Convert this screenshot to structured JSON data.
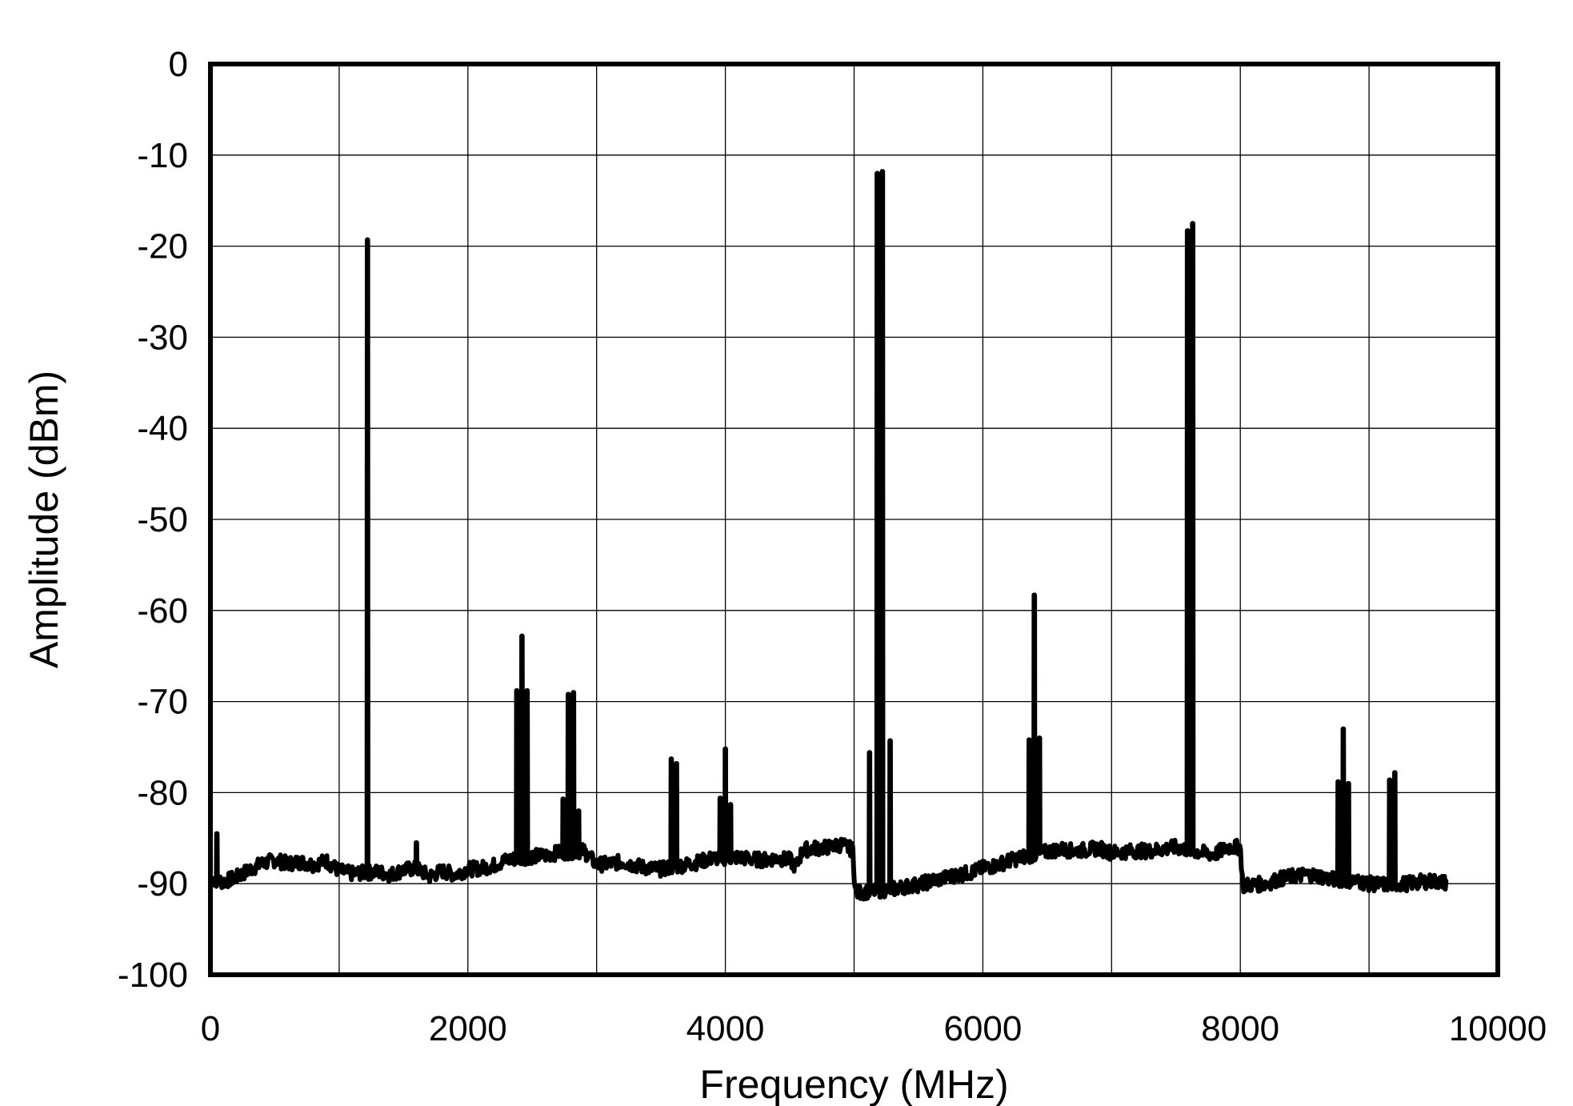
{
  "chart_data": {
    "type": "line",
    "title": "",
    "xlabel": "Frequency (MHz)",
    "ylabel": "Amplitude (dBm)",
    "xlim": [
      0,
      10000
    ],
    "ylim": [
      -100,
      0
    ],
    "xticks": [
      0,
      2000,
      4000,
      6000,
      8000,
      10000
    ],
    "yticks": [
      0,
      -10,
      -20,
      -30,
      -40,
      -50,
      -60,
      -70,
      -80,
      -90,
      -100
    ],
    "x_tick_labels": [
      "0",
      "2000",
      "4000",
      "6000",
      "8000",
      "10000"
    ],
    "y_tick_labels": [
      "0",
      "-10",
      "-20",
      "-30",
      "-40",
      "-50",
      "-60",
      "-70",
      "-80",
      "-90",
      "-100"
    ],
    "grid": true,
    "x_grid_step": 1000,
    "line_color": "#000000",
    "series": [
      {
        "noise_floor": [
          [
            10,
            -89.5
          ],
          [
            100,
            -89.8
          ],
          [
            200,
            -89.3
          ],
          [
            300,
            -88.5
          ],
          [
            400,
            -87.8
          ],
          [
            500,
            -87.4
          ],
          [
            600,
            -87.8
          ],
          [
            700,
            -87.6
          ],
          [
            800,
            -87.9
          ],
          [
            900,
            -87.5
          ],
          [
            1000,
            -88.6
          ],
          [
            1100,
            -88.9
          ],
          [
            1300,
            -88.7
          ],
          [
            1400,
            -89.0
          ],
          [
            1500,
            -88.5
          ],
          [
            1600,
            -88.3
          ],
          [
            1700,
            -89.2
          ],
          [
            1800,
            -88.6
          ],
          [
            1900,
            -89.0
          ],
          [
            2000,
            -88.4
          ],
          [
            2100,
            -88.3
          ],
          [
            2200,
            -88.0
          ],
          [
            2300,
            -87.4
          ],
          [
            2500,
            -87.0
          ],
          [
            2600,
            -86.9
          ],
          [
            2700,
            -86.6
          ],
          [
            2900,
            -86.4
          ],
          [
            3000,
            -87.9
          ],
          [
            3100,
            -87.8
          ],
          [
            3200,
            -87.6
          ],
          [
            3300,
            -88.0
          ],
          [
            3400,
            -88.3
          ],
          [
            3500,
            -88.4
          ],
          [
            3700,
            -87.9
          ],
          [
            3800,
            -87.6
          ],
          [
            3900,
            -87.2
          ],
          [
            4100,
            -87.1
          ],
          [
            4200,
            -87.3
          ],
          [
            4300,
            -87.4
          ],
          [
            4400,
            -87.2
          ],
          [
            4500,
            -87.4
          ],
          [
            4550,
            -88.2
          ],
          [
            4600,
            -86.3
          ],
          [
            4700,
            -86.1
          ],
          [
            4800,
            -86.0
          ],
          [
            4900,
            -85.7
          ],
          [
            4990,
            -86.3
          ],
          [
            5010,
            -91.0
          ],
          [
            5300,
            -90.6
          ],
          [
            5400,
            -90.3
          ],
          [
            5500,
            -90.1
          ],
          [
            5600,
            -89.7
          ],
          [
            5700,
            -89.4
          ],
          [
            5800,
            -89.0
          ],
          [
            5900,
            -88.8
          ],
          [
            6000,
            -88.3
          ],
          [
            6100,
            -88.0
          ],
          [
            6200,
            -87.5
          ],
          [
            6300,
            -87.1
          ],
          [
            6500,
            -86.5
          ],
          [
            6600,
            -86.2
          ],
          [
            6700,
            -86.4
          ],
          [
            6800,
            -86.3
          ],
          [
            6900,
            -86.1
          ],
          [
            7000,
            -86.6
          ],
          [
            7100,
            -86.5
          ],
          [
            7200,
            -86.4
          ],
          [
            7300,
            -86.4
          ],
          [
            7400,
            -86.2
          ],
          [
            7500,
            -86.0
          ],
          [
            7700,
            -86.6
          ],
          [
            7800,
            -86.8
          ],
          [
            7900,
            -86.0
          ],
          [
            8000,
            -86.0
          ],
          [
            8020,
            -90.2
          ],
          [
            8200,
            -90.0
          ],
          [
            8300,
            -89.5
          ],
          [
            8400,
            -89.2
          ],
          [
            8500,
            -89.0
          ],
          [
            8600,
            -89.1
          ],
          [
            8700,
            -89.5
          ],
          [
            8900,
            -89.7
          ],
          [
            9000,
            -90.0
          ],
          [
            9100,
            -90.1
          ],
          [
            9300,
            -90.0
          ],
          [
            9400,
            -89.8
          ],
          [
            9500,
            -89.7
          ],
          [
            9600,
            -89.9
          ]
        ],
        "spurs": [
          {
            "x": 50,
            "y": -84.5
          },
          {
            "x": 1220,
            "y": -19.3
          },
          {
            "x": 1600,
            "y": -85.5
          },
          {
            "x": 2380,
            "y": -68.8
          },
          {
            "x": 2420,
            "y": -62.8
          },
          {
            "x": 2460,
            "y": -68.8
          },
          {
            "x": 2740,
            "y": -80.7
          },
          {
            "x": 2780,
            "y": -69.2
          },
          {
            "x": 2820,
            "y": -69.0
          },
          {
            "x": 2860,
            "y": -82.0
          },
          {
            "x": 3580,
            "y": -76.3
          },
          {
            "x": 3620,
            "y": -76.8
          },
          {
            "x": 3960,
            "y": -80.6
          },
          {
            "x": 4000,
            "y": -75.2
          },
          {
            "x": 4040,
            "y": -81.3
          },
          {
            "x": 5120,
            "y": -75.6
          },
          {
            "x": 5180,
            "y": -12.0
          },
          {
            "x": 5220,
            "y": -11.8
          },
          {
            "x": 5280,
            "y": -74.3
          },
          {
            "x": 6360,
            "y": -74.2
          },
          {
            "x": 6400,
            "y": -58.3
          },
          {
            "x": 6440,
            "y": -74.0
          },
          {
            "x": 7590,
            "y": -18.3
          },
          {
            "x": 7630,
            "y": -17.5
          },
          {
            "x": 8760,
            "y": -78.8
          },
          {
            "x": 8800,
            "y": -73.0
          },
          {
            "x": 8840,
            "y": -79.0
          },
          {
            "x": 9160,
            "y": -78.6
          },
          {
            "x": 9200,
            "y": -77.8
          }
        ]
      }
    ]
  }
}
